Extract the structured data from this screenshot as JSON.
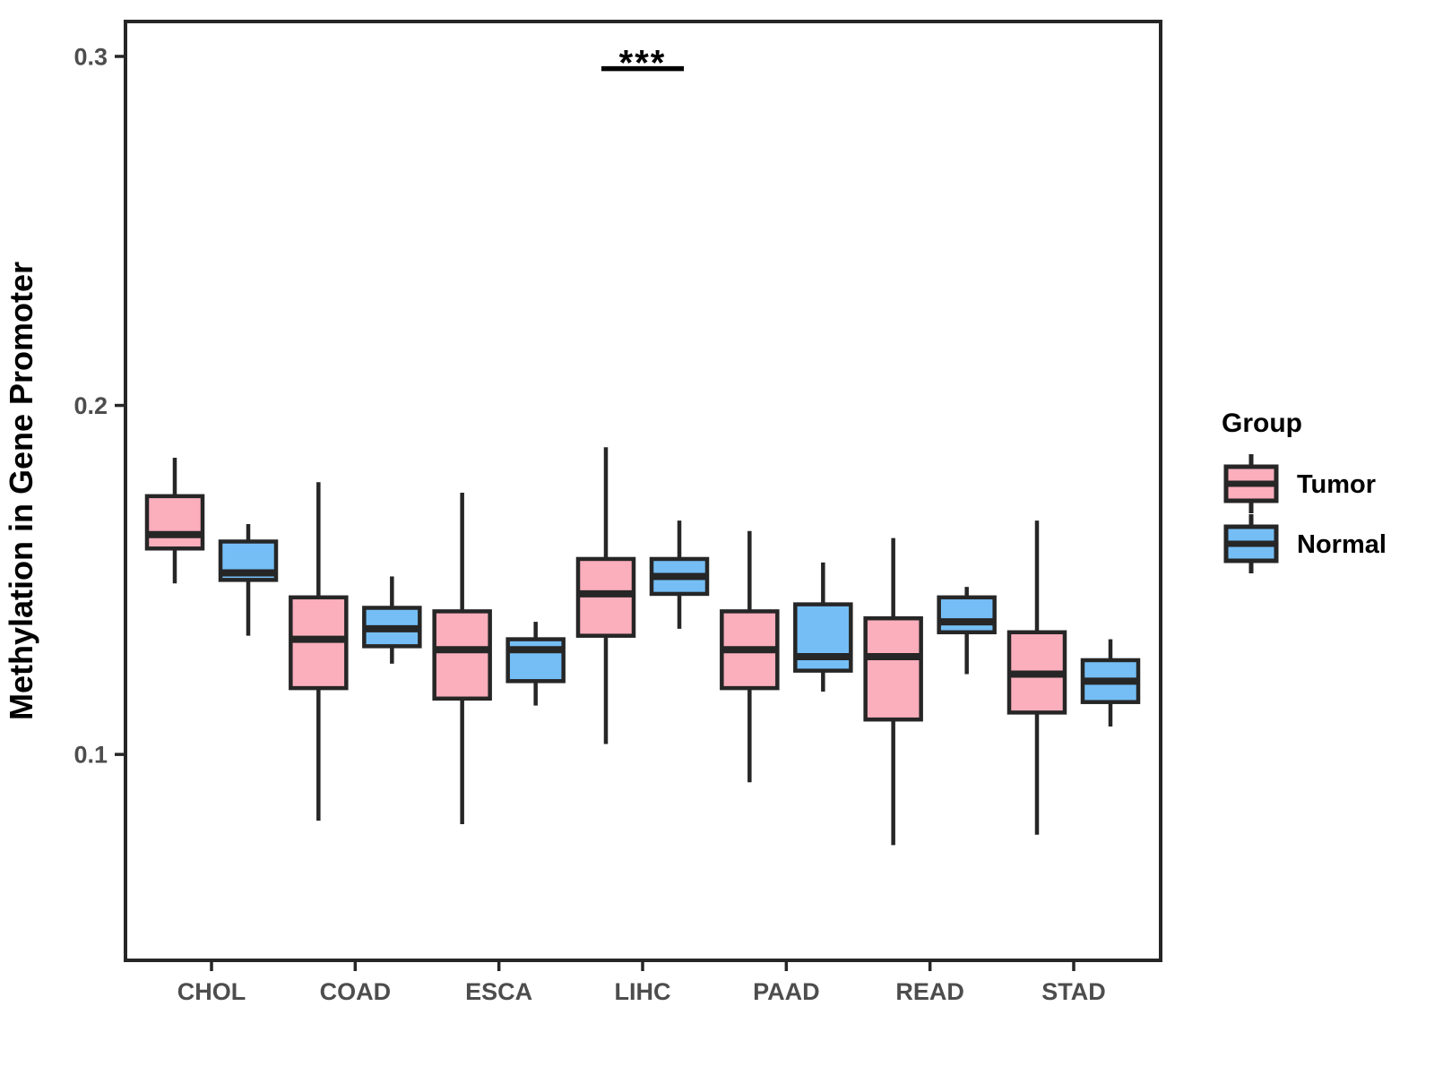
{
  "colors": {
    "tumor_fill": "#FBAEBC",
    "normal_fill": "#75BEF5",
    "stroke": "#262626",
    "axis_text": "#4D4D4D",
    "background": "#FFFFFF"
  },
  "chart_data": {
    "type": "boxplot",
    "title": "",
    "xlabel": "",
    "ylabel": "Methylation in Gene Promoter",
    "ylim": [
      0.041,
      0.31
    ],
    "y_ticks": [
      0.3,
      0.2,
      0.1
    ],
    "y_tick_labels": [
      "0.3",
      "0.2",
      "0.1"
    ],
    "grid": false,
    "categories": [
      "CHOL",
      "COAD",
      "ESCA",
      "LIHC",
      "PAAD",
      "READ",
      "STAD"
    ],
    "series": [
      {
        "name": "Tumor",
        "fill": "#FBAEBC",
        "boxes": [
          {
            "category": "CHOL",
            "min": 0.149,
            "q1": 0.159,
            "median": 0.163,
            "q3": 0.174,
            "max": 0.185
          },
          {
            "category": "COAD",
            "min": 0.081,
            "q1": 0.119,
            "median": 0.133,
            "q3": 0.145,
            "max": 0.178
          },
          {
            "category": "ESCA",
            "min": 0.08,
            "q1": 0.116,
            "median": 0.13,
            "q3": 0.141,
            "max": 0.175
          },
          {
            "category": "LIHC",
            "min": 0.103,
            "q1": 0.134,
            "median": 0.146,
            "q3": 0.156,
            "max": 0.188
          },
          {
            "category": "PAAD",
            "min": 0.092,
            "q1": 0.119,
            "median": 0.13,
            "q3": 0.141,
            "max": 0.164
          },
          {
            "category": "READ",
            "min": 0.074,
            "q1": 0.11,
            "median": 0.128,
            "q3": 0.139,
            "max": 0.162
          },
          {
            "category": "STAD",
            "min": 0.077,
            "q1": 0.112,
            "median": 0.123,
            "q3": 0.135,
            "max": 0.167
          }
        ]
      },
      {
        "name": "Normal",
        "fill": "#75BEF5",
        "boxes": [
          {
            "category": "CHOL",
            "min": 0.134,
            "q1": 0.15,
            "median": 0.152,
            "q3": 0.161,
            "max": 0.166
          },
          {
            "category": "COAD",
            "min": 0.126,
            "q1": 0.131,
            "median": 0.136,
            "q3": 0.142,
            "max": 0.151
          },
          {
            "category": "ESCA",
            "min": 0.114,
            "q1": 0.121,
            "median": 0.13,
            "q3": 0.133,
            "max": 0.138
          },
          {
            "category": "LIHC",
            "min": 0.136,
            "q1": 0.146,
            "median": 0.151,
            "q3": 0.156,
            "max": 0.167
          },
          {
            "category": "PAAD",
            "min": 0.118,
            "q1": 0.124,
            "median": 0.128,
            "q3": 0.143,
            "max": 0.155
          },
          {
            "category": "READ",
            "min": 0.123,
            "q1": 0.135,
            "median": 0.138,
            "q3": 0.145,
            "max": 0.148
          },
          {
            "category": "STAD",
            "min": 0.108,
            "q1": 0.115,
            "median": 0.121,
            "q3": 0.127,
            "max": 0.133
          }
        ]
      }
    ],
    "legend": {
      "title": "Group",
      "position": "right"
    },
    "annotation": {
      "label": "***",
      "category": "LIHC",
      "line_y": 0.2965
    }
  }
}
